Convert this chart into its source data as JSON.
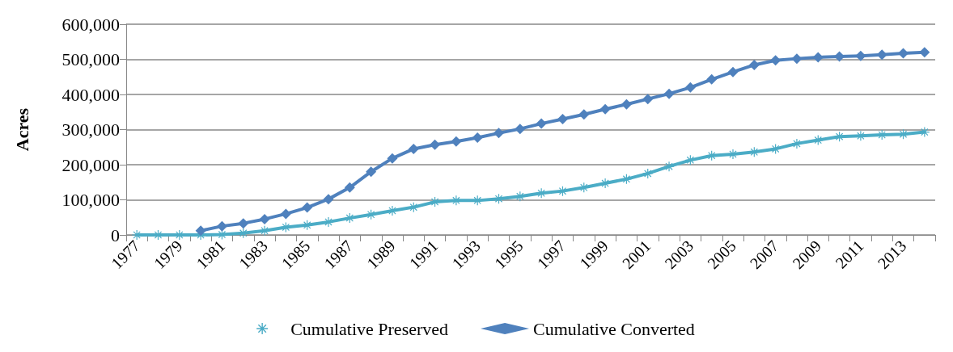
{
  "chart_data": {
    "type": "line",
    "ylabel": "Acres",
    "categories": [
      "1977",
      null,
      "1979",
      null,
      "1981",
      null,
      "1983",
      null,
      "1985",
      null,
      "1987",
      null,
      "1989",
      null,
      "1991",
      null,
      "1993",
      null,
      "1995",
      null,
      "1997",
      null,
      "1999",
      null,
      "2001",
      null,
      "2003",
      null,
      "2005",
      null,
      "2007",
      null,
      "2009",
      null,
      "2011",
      null,
      "2013",
      null
    ],
    "series": [
      {
        "name": "Cumulative Preserved",
        "color": "#4bacc6",
        "marker": "cross",
        "values": [
          0,
          0,
          0,
          0,
          1000,
          5000,
          12000,
          22000,
          28000,
          37000,
          48000,
          58000,
          69000,
          79000,
          94000,
          98000,
          98000,
          103000,
          110000,
          119000,
          125000,
          135000,
          147000,
          159000,
          175000,
          195000,
          213000,
          226000,
          230000,
          236000,
          245000,
          260000,
          270000,
          280000,
          282000,
          285000,
          287000,
          293000
        ]
      },
      {
        "name": "Cumulative Converted",
        "color": "#4f81bd",
        "marker": "diamond",
        "values": [
          null,
          null,
          null,
          12000,
          25000,
          33000,
          45000,
          60000,
          78000,
          102000,
          135000,
          180000,
          218000,
          245000,
          257000,
          266000,
          277000,
          290000,
          302000,
          317000,
          330000,
          343000,
          358000,
          372000,
          387000,
          402000,
          420000,
          443000,
          464000,
          484000,
          497000,
          502000,
          506000,
          508000,
          510000,
          513000,
          517000,
          520000
        ]
      }
    ],
    "ylim": [
      0,
      600000
    ],
    "yticks": [
      0,
      {
        "value": 100000,
        "label": "100,000"
      },
      {
        "value": 200000,
        "label": "200,000"
      },
      {
        "value": 300000,
        "label": "300,000"
      },
      {
        "value": 400000,
        "label": "400,000"
      },
      {
        "value": 500000,
        "label": "500,000"
      },
      {
        "value": 600000,
        "label": "600,000"
      }
    ],
    "grid": "y",
    "legend": "bottom",
    "line_style": "solid"
  }
}
